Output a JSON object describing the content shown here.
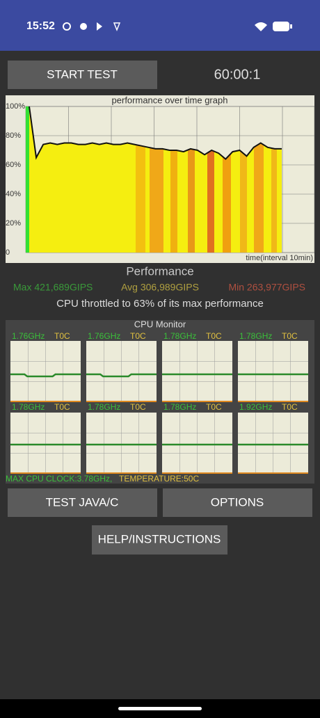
{
  "status_bar": {
    "time": "15:52"
  },
  "start_button": "START TEST",
  "timer": "60:00:1",
  "perf_graph": {
    "type": "line",
    "title": "performance over time graph",
    "x_label": "time(interval 10min)",
    "ylim": [
      0,
      100
    ],
    "yticks": [
      0,
      {
        "value": 20,
        "label": "20%"
      },
      {
        "value": 40,
        "label": "40%"
      },
      {
        "value": 60,
        "label": "60%"
      },
      {
        "value": 80,
        "label": "80%"
      },
      {
        "value": 100,
        "label": "100%"
      }
    ],
    "color": "#111111",
    "values": [
      100,
      65,
      74,
      75,
      74,
      75,
      75,
      74,
      74,
      75,
      74,
      75,
      74,
      74,
      75,
      74,
      73,
      72,
      71,
      71,
      70,
      70,
      69,
      71,
      70,
      67,
      70,
      68,
      64,
      69,
      70,
      66,
      72,
      75,
      72,
      71,
      71
    ]
  },
  "performance": {
    "title": "Performance",
    "max": "Max 421,689GIPS",
    "avg": "Avg 306,989GIPS",
    "min": "Min 263,977GIPS",
    "throttle": "CPU throttled to 63% of its max performance"
  },
  "cpu_monitor": {
    "title": "CPU Monitor",
    "cores": [
      {
        "freq": "1.76GHz",
        "temp": "T0C"
      },
      {
        "freq": "1.76GHz",
        "temp": "T0C"
      },
      {
        "freq": "1.78GHz",
        "temp": "T0C"
      },
      {
        "freq": "1.78GHz",
        "temp": "T0C"
      },
      {
        "freq": "1.78GHz",
        "temp": "T0C"
      },
      {
        "freq": "1.78GHz",
        "temp": "T0C"
      },
      {
        "freq": "1.78GHz",
        "temp": "T0C"
      },
      {
        "freq": "1.92GHz",
        "temp": "T0C"
      }
    ],
    "max_clock": "MAX CPU CLOCK:3.78GHz,",
    "temperature": "TEMPERATURE:50C"
  },
  "buttons": {
    "test": "TEST JAVA/C",
    "options": "OPTIONS",
    "help": "HELP/INSTRUCTIONS"
  }
}
